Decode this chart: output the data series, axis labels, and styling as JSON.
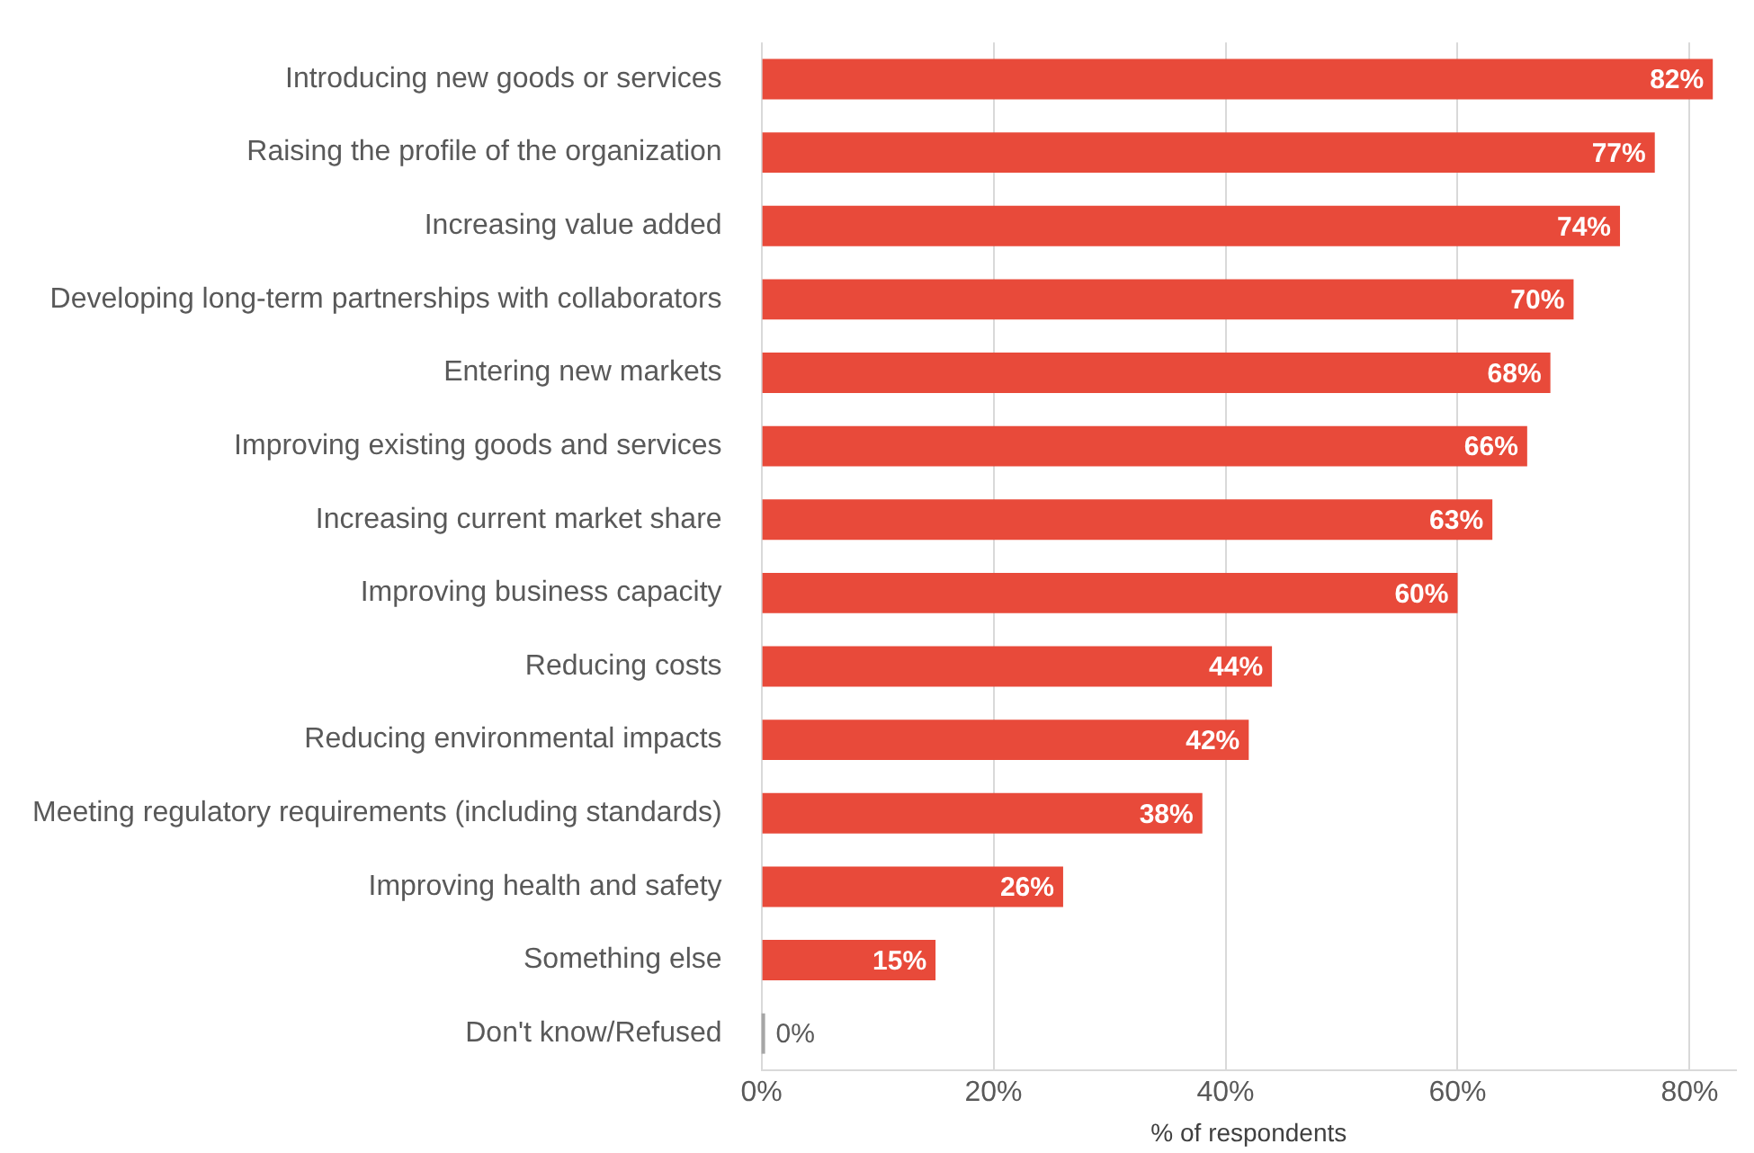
{
  "chart_data": {
    "type": "bar",
    "orientation": "horizontal",
    "xlabel": "% of respondents",
    "categories": [
      "Introducing new goods or services",
      "Raising the profile of the organization",
      "Increasing value added",
      "Developing long-term partnerships with collaborators",
      "Entering new markets",
      "Improving existing goods and services",
      "Increasing current market share",
      "Improving business capacity",
      "Reducing costs",
      "Reducing environmental impacts",
      "Meeting regulatory requirements (including standards)",
      "Improving health and safety",
      "Something else",
      "Don't know/Refused"
    ],
    "values": [
      82,
      77,
      74,
      70,
      68,
      66,
      63,
      60,
      44,
      42,
      38,
      26,
      15,
      0
    ],
    "value_labels": [
      "82%",
      "77%",
      "74%",
      "70%",
      "68%",
      "66%",
      "63%",
      "60%",
      "44%",
      "42%",
      "38%",
      "26%",
      "15%",
      "0%"
    ],
    "color": "#e84a3a",
    "xlim": [
      0,
      84
    ],
    "xticks": [
      {
        "value": 0,
        "label": "0%"
      },
      {
        "value": 20,
        "label": "20%"
      },
      {
        "value": 40,
        "label": "40%"
      },
      {
        "value": 60,
        "label": "60%"
      },
      {
        "value": 80,
        "label": "80%"
      }
    ],
    "grid": "x",
    "legend": false
  }
}
